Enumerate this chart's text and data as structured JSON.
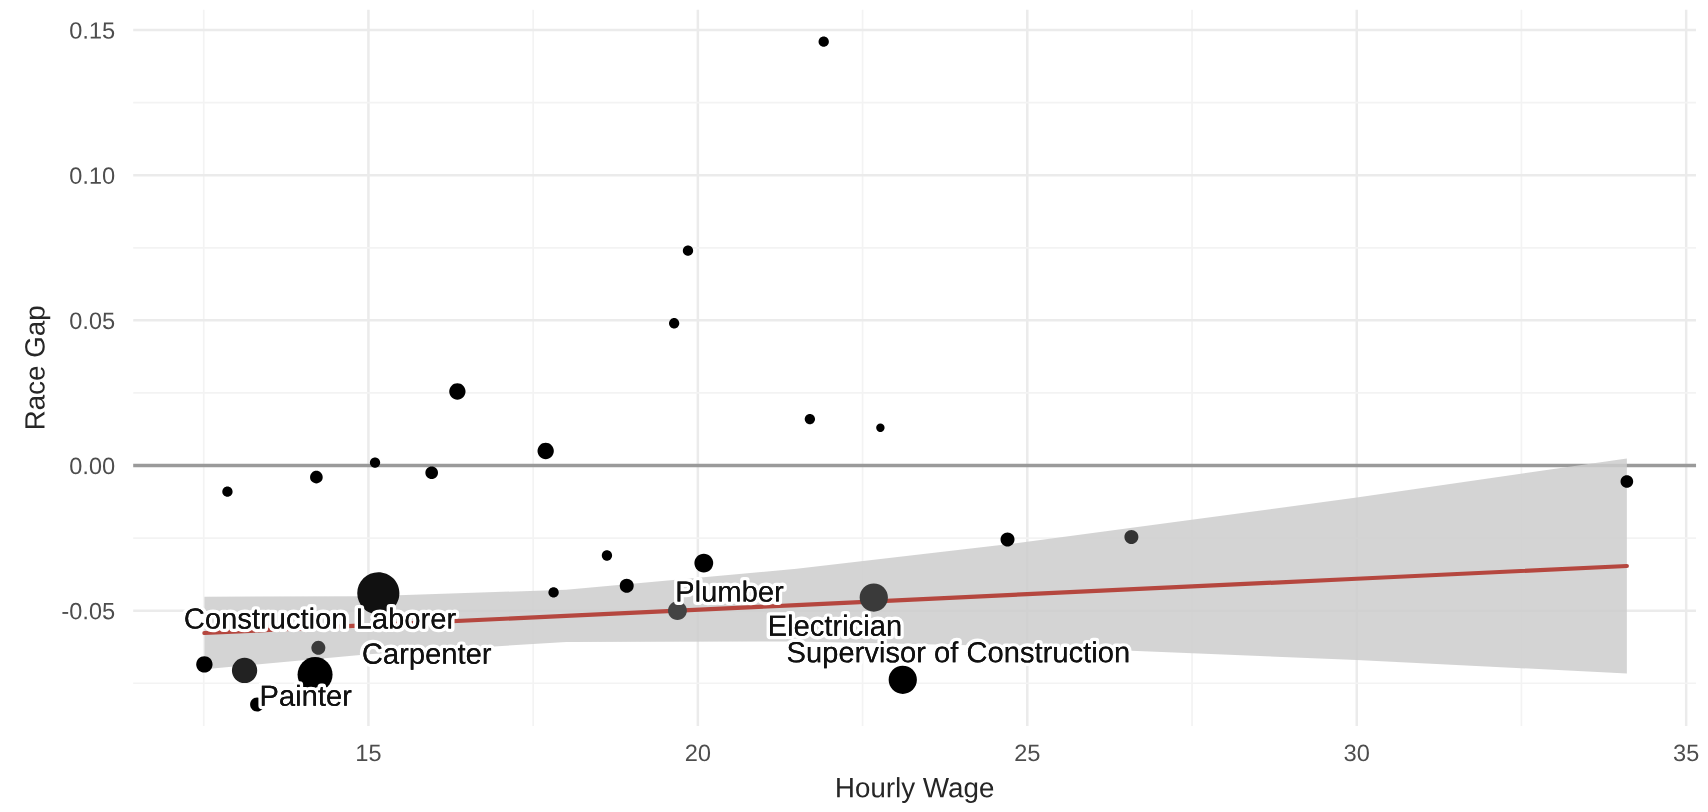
{
  "chart_data": {
    "type": "bubble",
    "xlabel": "Hourly Wage",
    "ylabel": "Race Gap",
    "xlim": [
      11.43,
      35.15
    ],
    "ylim": [
      -0.0897,
      0.157
    ],
    "xticks": [
      15,
      20,
      25,
      30,
      35
    ],
    "yticks": [
      {
        "value": 0.15,
        "label": "0.15"
      },
      {
        "value": 0.1,
        "label": "0.10"
      },
      {
        "value": 0.05,
        "label": "0.05"
      },
      {
        "value": 0,
        "label": "0.00"
      },
      {
        "value": -0.05,
        "label": "-0.05"
      }
    ],
    "grid": true,
    "series": [
      {
        "x": [
          21.91,
          19.85,
          19.64,
          16.35,
          21.7,
          22.77,
          17.69,
          15.1,
          15.96,
          14.21,
          12.86,
          34.1,
          18.62,
          20.09,
          24.7,
          26.58,
          17.81,
          18.92,
          15.15,
          19.69,
          22.67,
          23.11,
          12.51,
          13.12,
          13.31,
          14.19,
          14.24
        ],
        "values": [
          0.146,
          0.074,
          0.049,
          0.0255,
          0.016,
          0.013,
          0.005,
          0.001,
          -0.0025,
          -0.004,
          -0.009,
          -0.0055,
          -0.031,
          -0.0336,
          -0.0255,
          -0.0246,
          -0.0437,
          -0.0414,
          -0.044,
          -0.05,
          -0.0455,
          -0.0738,
          -0.0685,
          -0.0706,
          -0.0823,
          -0.072,
          -0.0628
        ],
        "sizes": [
          0.06,
          0.06,
          0.06,
          0.15,
          0.06,
          0.04,
          0.15,
          0.06,
          0.09,
          0.09,
          0.06,
          0.09,
          0.06,
          0.2,
          0.11,
          0.11,
          0.06,
          0.11,
          1,
          0.2,
          0.45,
          0.45,
          0.15,
          0.36,
          0.11,
          0.69,
          0.11
        ],
        "colors": [
          "#000000",
          "#000000",
          "#000000",
          "#000000",
          "#000000",
          "#000000",
          "#000000",
          "#000000",
          "#000000",
          "#000000",
          "#000000",
          "#000000",
          "#000000",
          "#000000",
          "#000000",
          "#333333",
          "#000000",
          "#000000",
          "#111111",
          "#444444",
          "#3a3a3a",
          "#000000",
          "#000000",
          "#222222",
          "#000000",
          "#000000",
          "#3a3a3a"
        ]
      },
      {
        "type": "line",
        "color": "#b5473f",
        "x": [
          12.51,
          15,
          18,
          21.5,
          25,
          30,
          34.1
        ],
        "values": [
          -0.0577,
          -0.055,
          -0.0518,
          -0.0481,
          -0.0443,
          -0.039,
          -0.0346
        ],
        "lower": [
          -0.0702,
          -0.065,
          -0.0608,
          -0.0606,
          -0.0623,
          -0.067,
          -0.0716
        ],
        "upper": [
          -0.0452,
          -0.045,
          -0.0428,
          -0.0356,
          -0.0263,
          -0.011,
          0.0024
        ]
      }
    ],
    "ref_lines": [
      {
        "axis": "y",
        "value": 0,
        "color": "#9a9a9a"
      }
    ],
    "annotations": [
      {
        "text": "Construction Laborer",
        "x": 15.15,
        "y": -0.044
      },
      {
        "text": "Carpenter",
        "x": 14.24,
        "y": -0.0628
      },
      {
        "text": "Painter",
        "x": 13.12,
        "y": -0.0706
      },
      {
        "text": "Plumber",
        "x": 18.92,
        "y": -0.0414
      },
      {
        "text": "Electrician",
        "x": 22.67,
        "y": -0.0455
      },
      {
        "text": "Supervisor of Construction",
        "x": 23.11,
        "y": -0.0738
      }
    ]
  }
}
